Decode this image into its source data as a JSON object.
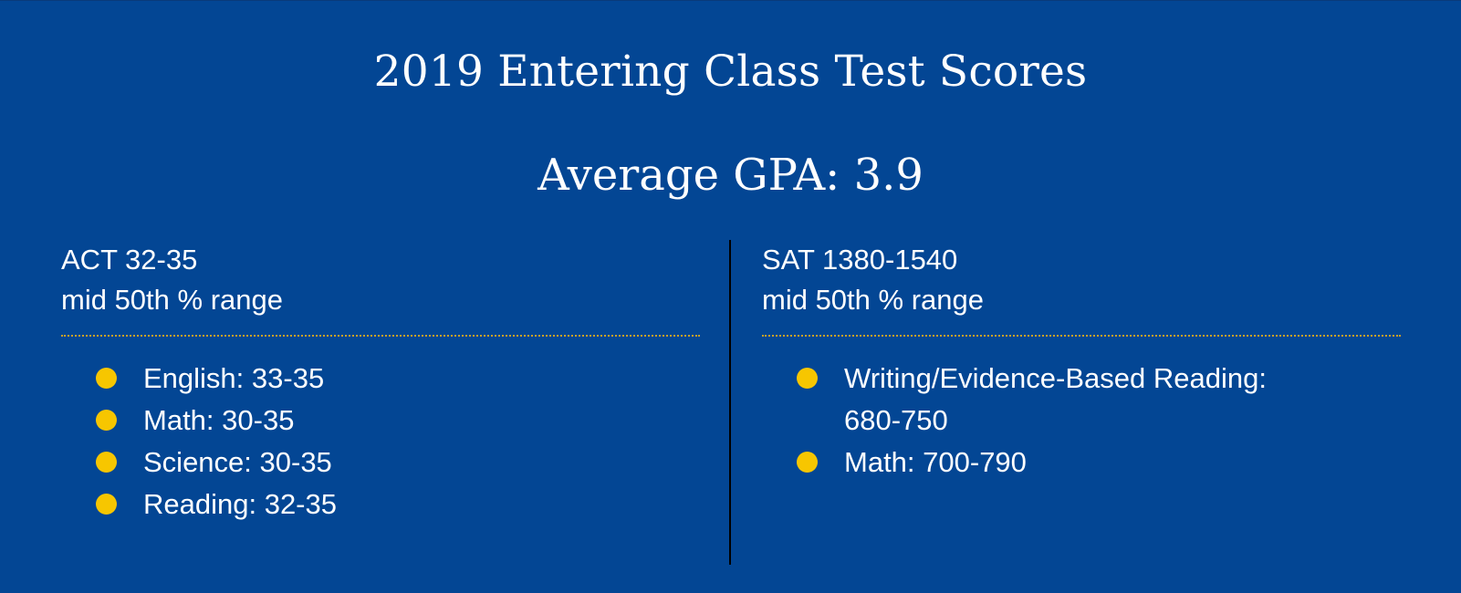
{
  "title": "2019 Entering Class Test Scores",
  "gpa": "Average GPA: 3.9",
  "colors": {
    "background": "#034694",
    "text": "#ffffff",
    "bullet": "#f7c600",
    "rule": "#c9a227",
    "divider": "#000000"
  },
  "act": {
    "heading": "ACT 32-35",
    "subheading": "mid 50th % range",
    "items": [
      {
        "label": "English: 33-35"
      },
      {
        "label": "Math: 30-35"
      },
      {
        "label": "Science: 30-35"
      },
      {
        "label": "Reading: 32-35"
      }
    ]
  },
  "sat": {
    "heading": "SAT 1380-1540",
    "subheading": "mid 50th % range",
    "items": [
      {
        "label": "Writing/Evidence-Based Reading: 680-750"
      },
      {
        "label": "Math: 700-790"
      }
    ]
  }
}
